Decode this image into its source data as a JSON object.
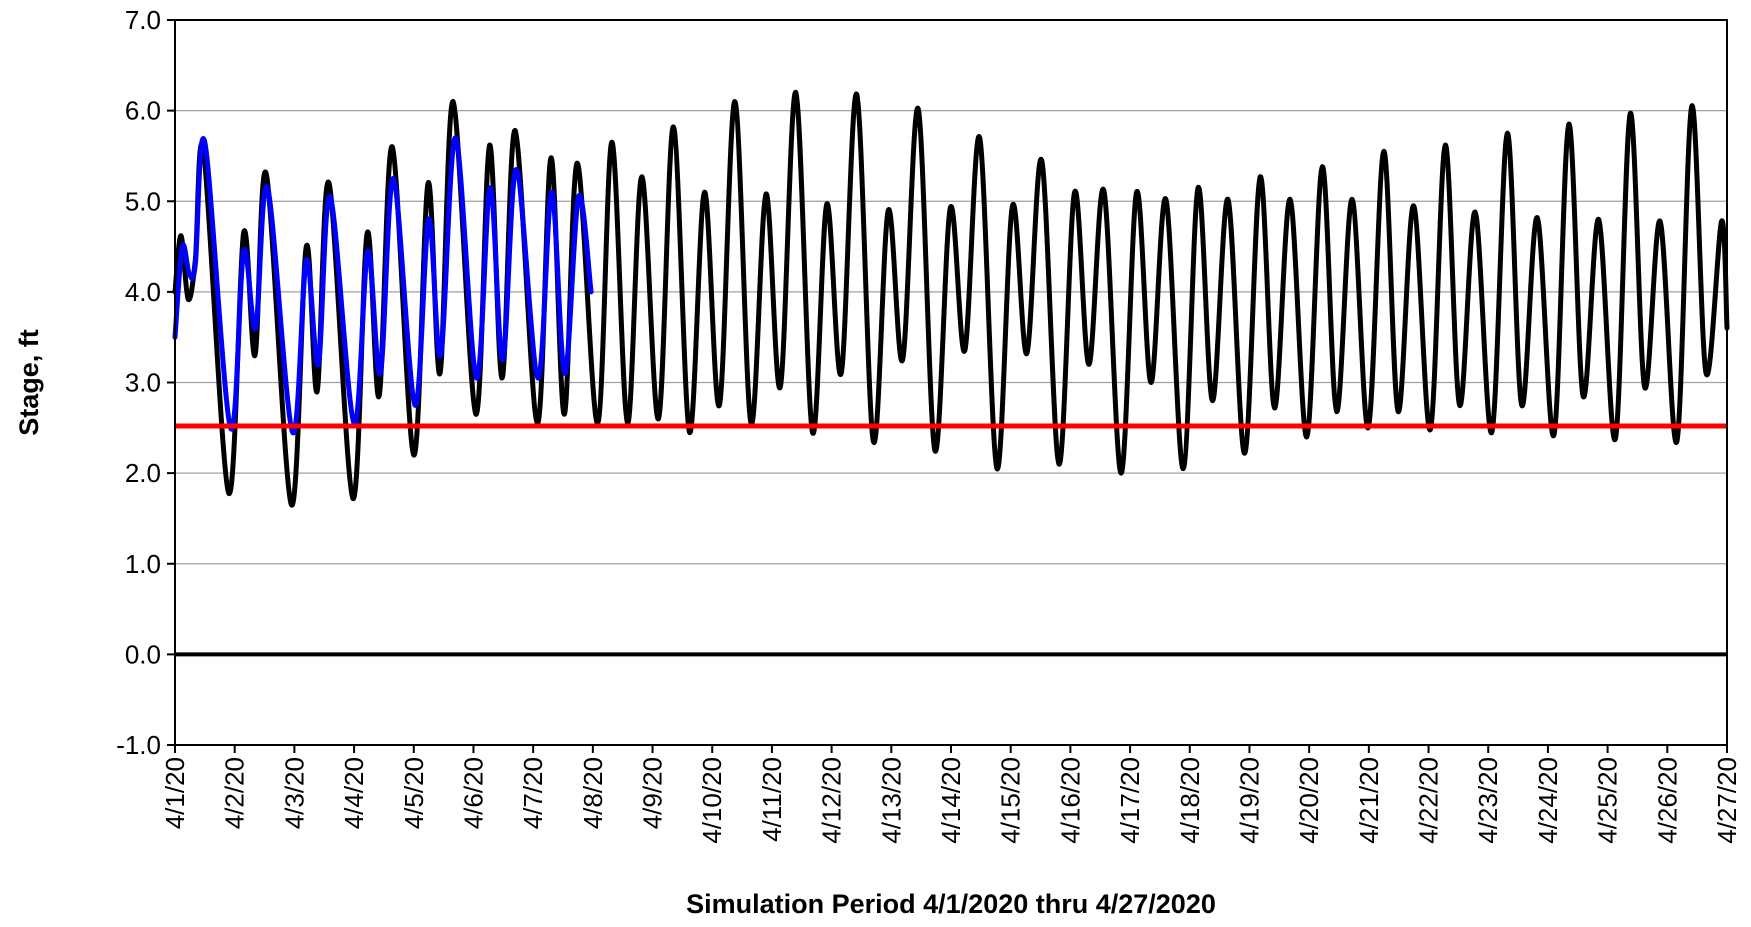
{
  "chart_data": {
    "type": "line",
    "title": "",
    "xlabel": "Simulation Period 4/1/2020 thru 4/27/2020",
    "ylabel": "Stage, ft",
    "ylim": [
      -1.0,
      7.0
    ],
    "y_ticks": [
      "-1.0",
      "0.0",
      "1.0",
      "2.0",
      "3.0",
      "4.0",
      "5.0",
      "6.0",
      "7.0"
    ],
    "x_range_days": [
      0,
      26
    ],
    "x_tick_labels": [
      "4/1/20",
      "4/2/20",
      "4/3/20",
      "4/4/20",
      "4/5/20",
      "4/6/20",
      "4/7/20",
      "4/8/20",
      "4/9/20",
      "4/10/20",
      "4/11/20",
      "4/12/20",
      "4/13/20",
      "4/14/20",
      "4/15/20",
      "4/16/20",
      "4/17/20",
      "4/18/20",
      "4/19/20",
      "4/20/20",
      "4/21/20",
      "4/22/20",
      "4/23/20",
      "4/24/20",
      "4/25/20",
      "4/26/20",
      "4/27/20"
    ],
    "grid": "horizontal",
    "legend": "none",
    "colors": {
      "black_series": "#000000",
      "blue_series": "#0000ff",
      "threshold": "#ff0000",
      "zero_line": "#000000",
      "grid": "#a0a0a0"
    },
    "threshold_value": 2.52,
    "zero_line_value": 0.0,
    "series": [
      {
        "color": "#000000",
        "points": [
          [
            0.0,
            4.0
          ],
          [
            0.1,
            4.62
          ],
          [
            0.22,
            3.92
          ],
          [
            0.34,
            4.35
          ],
          [
            0.48,
            5.55
          ],
          [
            0.9,
            1.78
          ],
          [
            1.15,
            4.65
          ],
          [
            1.34,
            3.3
          ],
          [
            1.53,
            5.3
          ],
          [
            1.95,
            1.65
          ],
          [
            2.2,
            4.5
          ],
          [
            2.38,
            2.9
          ],
          [
            2.58,
            5.2
          ],
          [
            2.98,
            1.72
          ],
          [
            3.22,
            4.65
          ],
          [
            3.42,
            2.85
          ],
          [
            3.64,
            5.6
          ],
          [
            4.0,
            2.2
          ],
          [
            4.24,
            5.2
          ],
          [
            4.44,
            3.1
          ],
          [
            4.66,
            6.1
          ],
          [
            5.04,
            2.65
          ],
          [
            5.27,
            5.62
          ],
          [
            5.48,
            3.05
          ],
          [
            5.7,
            5.78
          ],
          [
            6.07,
            2.55
          ],
          [
            6.3,
            5.48
          ],
          [
            6.52,
            2.65
          ],
          [
            6.74,
            5.42
          ],
          [
            7.08,
            2.55
          ],
          [
            7.32,
            5.65
          ],
          [
            7.58,
            2.55
          ],
          [
            7.82,
            5.27
          ],
          [
            8.1,
            2.6
          ],
          [
            8.35,
            5.82
          ],
          [
            8.62,
            2.45
          ],
          [
            8.87,
            5.1
          ],
          [
            9.12,
            2.75
          ],
          [
            9.38,
            6.1
          ],
          [
            9.65,
            2.55
          ],
          [
            9.9,
            5.08
          ],
          [
            10.14,
            2.95
          ],
          [
            10.4,
            6.2
          ],
          [
            10.68,
            2.45
          ],
          [
            10.92,
            4.97
          ],
          [
            11.16,
            3.1
          ],
          [
            11.42,
            6.18
          ],
          [
            11.7,
            2.35
          ],
          [
            11.95,
            4.9
          ],
          [
            12.19,
            3.25
          ],
          [
            12.45,
            6.02
          ],
          [
            12.73,
            2.25
          ],
          [
            12.99,
            4.93
          ],
          [
            13.23,
            3.35
          ],
          [
            13.48,
            5.7
          ],
          [
            13.77,
            2.05
          ],
          [
            14.03,
            4.95
          ],
          [
            14.27,
            3.32
          ],
          [
            14.52,
            5.45
          ],
          [
            14.81,
            2.1
          ],
          [
            15.07,
            5.1
          ],
          [
            15.31,
            3.2
          ],
          [
            15.56,
            5.12
          ],
          [
            15.85,
            2.0
          ],
          [
            16.11,
            5.1
          ],
          [
            16.35,
            3.0
          ],
          [
            16.6,
            5.02
          ],
          [
            16.89,
            2.05
          ],
          [
            17.14,
            5.15
          ],
          [
            17.38,
            2.8
          ],
          [
            17.64,
            5.02
          ],
          [
            17.92,
            2.22
          ],
          [
            18.18,
            5.27
          ],
          [
            18.42,
            2.72
          ],
          [
            18.68,
            5.02
          ],
          [
            18.96,
            2.4
          ],
          [
            19.22,
            5.38
          ],
          [
            19.46,
            2.68
          ],
          [
            19.72,
            5.02
          ],
          [
            19.99,
            2.5
          ],
          [
            20.25,
            5.55
          ],
          [
            20.49,
            2.68
          ],
          [
            20.75,
            4.95
          ],
          [
            21.03,
            2.48
          ],
          [
            21.28,
            5.62
          ],
          [
            21.52,
            2.75
          ],
          [
            21.78,
            4.88
          ],
          [
            22.06,
            2.45
          ],
          [
            22.32,
            5.75
          ],
          [
            22.56,
            2.75
          ],
          [
            22.82,
            4.82
          ],
          [
            23.1,
            2.42
          ],
          [
            23.35,
            5.85
          ],
          [
            23.59,
            2.85
          ],
          [
            23.85,
            4.8
          ],
          [
            24.13,
            2.38
          ],
          [
            24.38,
            5.97
          ],
          [
            24.62,
            2.95
          ],
          [
            24.88,
            4.78
          ],
          [
            25.16,
            2.35
          ],
          [
            25.41,
            6.05
          ],
          [
            25.65,
            3.1
          ],
          [
            25.91,
            4.78
          ],
          [
            26.0,
            3.6
          ]
        ]
      },
      {
        "color": "#0000ff",
        "points": [
          [
            0.0,
            3.5
          ],
          [
            0.12,
            4.5
          ],
          [
            0.24,
            4.2
          ],
          [
            0.34,
            4.3
          ],
          [
            0.5,
            5.65
          ],
          [
            0.93,
            2.5
          ],
          [
            1.15,
            4.45
          ],
          [
            1.35,
            3.6
          ],
          [
            1.55,
            5.15
          ],
          [
            1.97,
            2.45
          ],
          [
            2.2,
            4.35
          ],
          [
            2.4,
            3.2
          ],
          [
            2.6,
            5.05
          ],
          [
            3.0,
            2.55
          ],
          [
            3.23,
            4.45
          ],
          [
            3.44,
            3.1
          ],
          [
            3.66,
            5.25
          ],
          [
            4.02,
            2.75
          ],
          [
            4.25,
            4.8
          ],
          [
            4.45,
            3.3
          ],
          [
            4.7,
            5.7
          ],
          [
            5.05,
            3.05
          ],
          [
            5.28,
            5.15
          ],
          [
            5.49,
            3.25
          ],
          [
            5.72,
            5.35
          ],
          [
            6.08,
            3.05
          ],
          [
            6.31,
            5.1
          ],
          [
            6.53,
            3.1
          ],
          [
            6.76,
            5.05
          ],
          [
            6.97,
            4.0
          ]
        ]
      }
    ]
  }
}
